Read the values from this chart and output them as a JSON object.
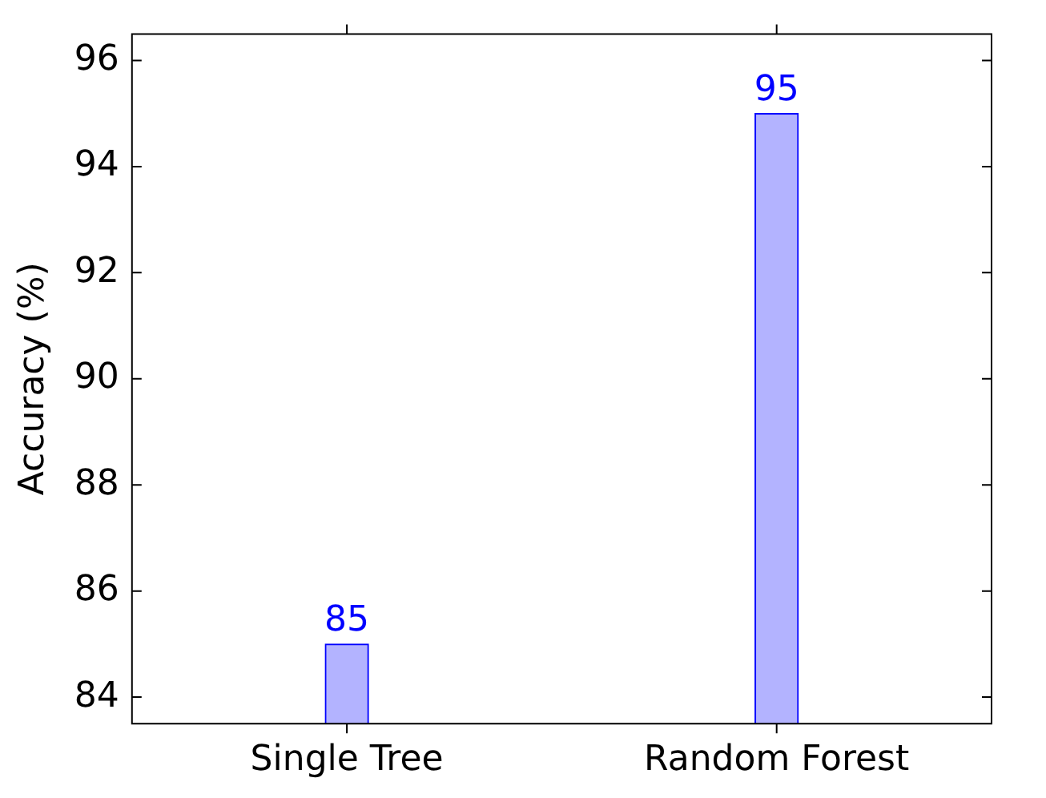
{
  "chart_data": {
    "type": "bar",
    "ylabel": "Accuracy (%)",
    "categories": [
      "Single Tree",
      "Random Forest"
    ],
    "values": [
      85,
      95
    ],
    "color": "#b3b3ff",
    "data_labels": true,
    "ylim": [
      83.5,
      96.5
    ],
    "yticks": [
      84,
      86,
      88,
      90,
      92,
      94,
      96
    ]
  }
}
